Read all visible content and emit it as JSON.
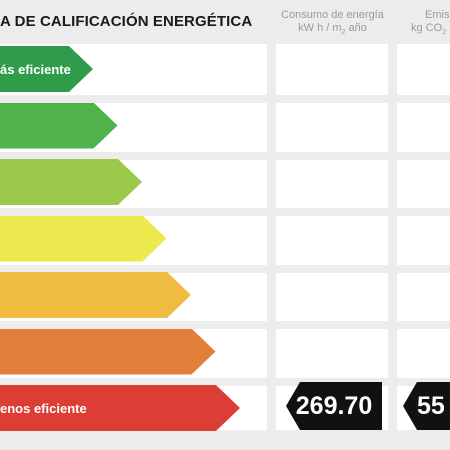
{
  "title": "A DE CALIFICACIÓN ENERGÉTICA",
  "columns": {
    "consumo_line1": "Consumo de energía",
    "consumo_line2_pre": "kW h / m",
    "consumo_line2_sub": "2",
    "consumo_line2_post": " año",
    "emisiones_line1": "Emis",
    "emisiones_line2_pre": "kg CO",
    "emisiones_line2_sub": "2"
  },
  "bars": [
    {
      "label": "ás eficiente",
      "color": "#2e9c4b",
      "level": 1
    },
    {
      "label": "",
      "color": "#4fb24c",
      "level": 2
    },
    {
      "label": "",
      "color": "#9bc94a",
      "level": 3
    },
    {
      "label": "",
      "color": "#ece94e",
      "level": 4
    },
    {
      "label": "",
      "color": "#efbb40",
      "level": 5
    },
    {
      "label": "",
      "color": "#e37f3b",
      "level": 6
    },
    {
      "label": "enos eficiente",
      "color": "#dc3d34",
      "level": 7
    }
  ],
  "rating": {
    "consumo_value": "269.70",
    "emisiones_value": "55"
  }
}
